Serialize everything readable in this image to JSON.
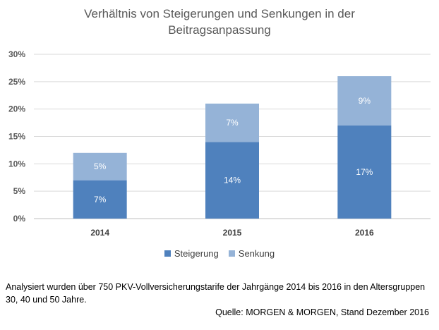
{
  "chart_data": {
    "type": "bar",
    "stacked": true,
    "title_lines": [
      "Verhältnis von Steigerungen und Senkungen in der",
      "Beitragsanpassung"
    ],
    "categories": [
      "2014",
      "2015",
      "2016"
    ],
    "series": [
      {
        "name": "Steigerung",
        "values": [
          7,
          14,
          17
        ],
        "labels": [
          "7%",
          "14%",
          "17%"
        ],
        "color": "#4f81bd"
      },
      {
        "name": "Senkung",
        "values": [
          5,
          7,
          9
        ],
        "labels": [
          "5%",
          "7%",
          "9%"
        ],
        "color": "#95b3d7"
      }
    ],
    "y_ticks": [
      "0%",
      "5%",
      "10%",
      "15%",
      "20%",
      "25%",
      "30%"
    ],
    "ylim": [
      0,
      30
    ],
    "grid": true,
    "legend_position": "bottom"
  },
  "footnote": "Analysiert wurden über 750 PKV-Vollversicherungstarife der Jahrgänge 2014 bis 2016 in den Altersgruppen 30, 40 und 50 Jahre.",
  "source": "Quelle: MORGEN & MORGEN, Stand Dezember 2016"
}
